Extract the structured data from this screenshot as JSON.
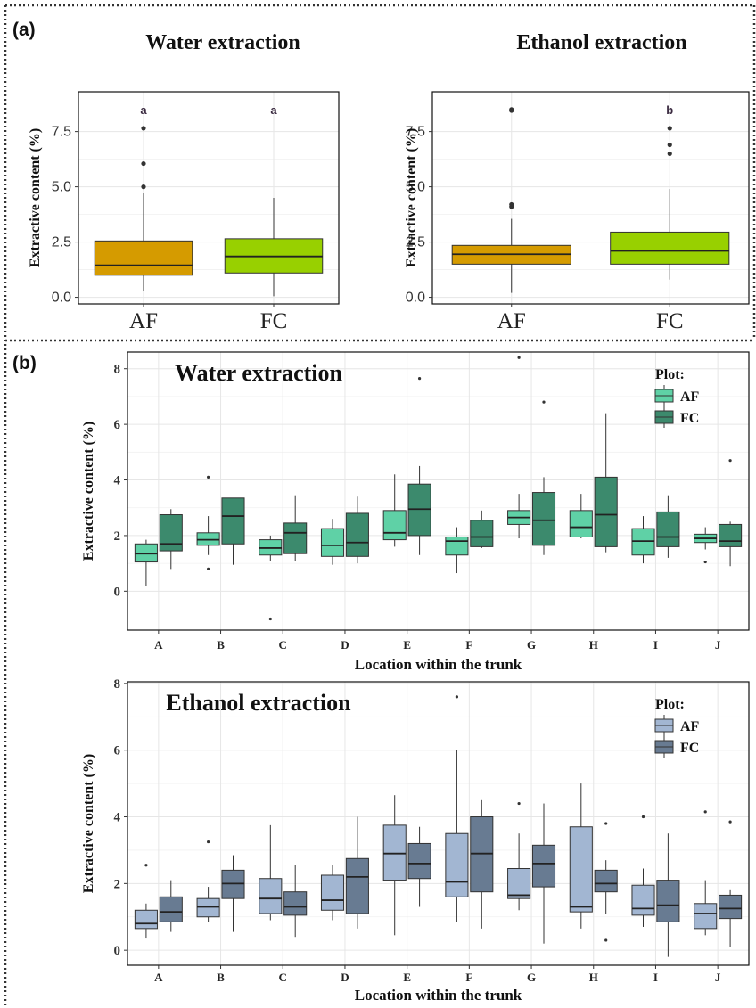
{
  "panels": {
    "a_label": "(a)",
    "b_label": "(b)"
  },
  "colors": {
    "af_orange": "#d59b00",
    "fc_lime": "#98d000",
    "af_teal": "#5fd1a6",
    "fc_teal": "#3c8a6d",
    "af_blue": "#a2b6d2",
    "fc_slate": "#687b92",
    "panel_border": "#333333",
    "grid": "#e6e6e6",
    "frame": "#111111"
  },
  "chart_data": [
    {
      "id": "a-water",
      "type": "box",
      "title": "Water extraction",
      "xlabel": "",
      "ylabel": "Extractive content (%)",
      "ylim": [
        -0.3,
        9.3
      ],
      "yticks": [
        0.0,
        2.5,
        5.0,
        7.5
      ],
      "ytick_labels": [
        "0.0",
        "2.5",
        "5.0",
        "7.5"
      ],
      "categories": [
        "AF",
        "FC"
      ],
      "colors": [
        "#d59b00",
        "#98d000"
      ],
      "boxes": [
        {
          "q1": 1.0,
          "median": 1.45,
          "q3": 2.55,
          "whisker_low": 0.3,
          "whisker_high": 4.7,
          "outliers": [
            5.0,
            6.05,
            7.65
          ]
        },
        {
          "q1": 1.1,
          "median": 1.85,
          "q3": 2.65,
          "whisker_low": 0.05,
          "whisker_high": 4.5,
          "outliers": []
        }
      ],
      "letters": [
        {
          "text": "a",
          "y": 8.45
        },
        {
          "text": "a",
          "y": 8.45
        }
      ]
    },
    {
      "id": "a-ethanol",
      "type": "box",
      "title": "Ethanol extraction",
      "xlabel": "",
      "ylabel": "Extractive content (%)",
      "ylim": [
        -0.3,
        9.3
      ],
      "yticks": [
        0.0,
        2.5,
        5.0,
        7.5
      ],
      "ytick_labels": [
        "0.0",
        "2.5",
        "5.0",
        "7.5"
      ],
      "categories": [
        "AF",
        "FC"
      ],
      "colors": [
        "#d59b00",
        "#98d000"
      ],
      "boxes": [
        {
          "q1": 1.5,
          "median": 1.95,
          "q3": 2.35,
          "whisker_low": 0.2,
          "whisker_high": 3.55,
          "outliers": [
            4.1,
            4.2,
            8.45,
            8.5
          ]
        },
        {
          "q1": 1.5,
          "median": 2.1,
          "q3": 2.95,
          "whisker_low": 0.8,
          "whisker_high": 4.9,
          "outliers": [
            6.5,
            6.9,
            7.65
          ]
        }
      ],
      "letters": [
        {
          "text": "",
          "y": 8.45
        },
        {
          "text": "b",
          "y": 8.45
        }
      ]
    },
    {
      "id": "b-water",
      "type": "box",
      "title": "Water extraction",
      "xlabel": "Location within the trunk",
      "ylabel": "Extractive content (%)",
      "ylim": [
        -1.4,
        8.6
      ],
      "yticks": [
        0,
        2,
        4,
        6,
        8
      ],
      "ytick_labels": [
        "0",
        "2",
        "4",
        "6",
        "8"
      ],
      "categories": [
        "A",
        "B",
        "C",
        "D",
        "E",
        "F",
        "G",
        "H",
        "I",
        "J"
      ],
      "legend": {
        "title": "Plot:",
        "entries": [
          "AF",
          "FC"
        ],
        "position": "top-right"
      },
      "colors": [
        "#5fd1a6",
        "#3c8a6d"
      ],
      "series": [
        {
          "name": "AF",
          "boxes": [
            {
              "q1": 1.05,
              "median": 1.35,
              "q3": 1.7,
              "whisker_low": 0.2,
              "whisker_high": 1.85,
              "outliers": []
            },
            {
              "q1": 1.65,
              "median": 1.85,
              "q3": 2.1,
              "whisker_low": 1.3,
              "whisker_high": 2.7,
              "outliers": [
                0.8,
                4.1
              ]
            },
            {
              "q1": 1.3,
              "median": 1.55,
              "q3": 1.85,
              "whisker_low": 1.1,
              "whisker_high": 2.0,
              "outliers": [
                -1.0
              ]
            },
            {
              "q1": 1.25,
              "median": 1.65,
              "q3": 2.25,
              "whisker_low": 0.95,
              "whisker_high": 2.6,
              "outliers": []
            },
            {
              "q1": 1.85,
              "median": 2.1,
              "q3": 2.9,
              "whisker_low": 1.6,
              "whisker_high": 4.2,
              "outliers": []
            },
            {
              "q1": 1.3,
              "median": 1.8,
              "q3": 1.95,
              "whisker_low": 0.65,
              "whisker_high": 2.3,
              "outliers": []
            },
            {
              "q1": 2.4,
              "median": 2.65,
              "q3": 2.9,
              "whisker_low": 1.9,
              "whisker_high": 3.5,
              "outliers": [
                8.4
              ]
            },
            {
              "q1": 1.95,
              "median": 2.3,
              "q3": 2.9,
              "whisker_low": 1.9,
              "whisker_high": 3.5,
              "outliers": []
            },
            {
              "q1": 1.3,
              "median": 1.8,
              "q3": 2.25,
              "whisker_low": 1.0,
              "whisker_high": 2.7,
              "outliers": []
            },
            {
              "q1": 1.75,
              "median": 1.9,
              "q3": 2.05,
              "whisker_low": 1.5,
              "whisker_high": 2.3,
              "outliers": [
                1.05
              ]
            }
          ]
        },
        {
          "name": "FC",
          "boxes": [
            {
              "q1": 1.45,
              "median": 1.7,
              "q3": 2.75,
              "whisker_low": 0.8,
              "whisker_high": 2.95,
              "outliers": []
            },
            {
              "q1": 1.7,
              "median": 2.7,
              "q3": 3.35,
              "whisker_low": 0.95,
              "whisker_high": 3.35,
              "outliers": []
            },
            {
              "q1": 1.35,
              "median": 2.1,
              "q3": 2.45,
              "whisker_low": 1.1,
              "whisker_high": 3.45,
              "outliers": []
            },
            {
              "q1": 1.25,
              "median": 1.75,
              "q3": 2.8,
              "whisker_low": 1.0,
              "whisker_high": 3.4,
              "outliers": []
            },
            {
              "q1": 2.0,
              "median": 2.95,
              "q3": 3.85,
              "whisker_low": 1.3,
              "whisker_high": 4.5,
              "outliers": [
                7.65
              ]
            },
            {
              "q1": 1.6,
              "median": 1.95,
              "q3": 2.55,
              "whisker_low": 1.55,
              "whisker_high": 2.9,
              "outliers": []
            },
            {
              "q1": 1.65,
              "median": 2.55,
              "q3": 3.55,
              "whisker_low": 1.3,
              "whisker_high": 4.1,
              "outliers": [
                6.8
              ]
            },
            {
              "q1": 1.6,
              "median": 2.75,
              "q3": 4.1,
              "whisker_low": 1.4,
              "whisker_high": 6.4,
              "outliers": []
            },
            {
              "q1": 1.6,
              "median": 1.95,
              "q3": 2.85,
              "whisker_low": 1.2,
              "whisker_high": 3.45,
              "outliers": []
            },
            {
              "q1": 1.6,
              "median": 1.8,
              "q3": 2.4,
              "whisker_low": 0.9,
              "whisker_high": 2.5,
              "outliers": [
                4.7
              ]
            }
          ]
        }
      ]
    },
    {
      "id": "b-ethanol",
      "type": "box",
      "title": "Ethanol extraction",
      "xlabel": "Location within the trunk",
      "ylabel": "Extractive content (%)",
      "ylim": [
        -0.45,
        8.05
      ],
      "yticks": [
        0,
        2,
        4,
        6,
        8
      ],
      "ytick_labels": [
        "0",
        "2",
        "4",
        "6",
        "8"
      ],
      "categories": [
        "A",
        "B",
        "C",
        "D",
        "E",
        "F",
        "G",
        "H",
        "I",
        "J"
      ],
      "legend": {
        "title": "Plot:",
        "entries": [
          "AF",
          "FC"
        ],
        "position": "top-right"
      },
      "colors": [
        "#a2b6d2",
        "#687b92"
      ],
      "series": [
        {
          "name": "AF",
          "boxes": [
            {
              "q1": 0.65,
              "median": 0.8,
              "q3": 1.2,
              "whisker_low": 0.35,
              "whisker_high": 1.4,
              "outliers": [
                2.55
              ]
            },
            {
              "q1": 1.0,
              "median": 1.3,
              "q3": 1.55,
              "whisker_low": 0.85,
              "whisker_high": 1.9,
              "outliers": [
                3.25
              ]
            },
            {
              "q1": 1.1,
              "median": 1.55,
              "q3": 2.15,
              "whisker_low": 0.9,
              "whisker_high": 3.75,
              "outliers": []
            },
            {
              "q1": 1.2,
              "median": 1.5,
              "q3": 2.25,
              "whisker_low": 0.9,
              "whisker_high": 2.55,
              "outliers": []
            },
            {
              "q1": 2.1,
              "median": 2.9,
              "q3": 3.75,
              "whisker_low": 0.45,
              "whisker_high": 4.65,
              "outliers": []
            },
            {
              "q1": 1.6,
              "median": 2.05,
              "q3": 3.5,
              "whisker_low": 0.85,
              "whisker_high": 6.0,
              "outliers": [
                7.6
              ]
            },
            {
              "q1": 1.55,
              "median": 1.65,
              "q3": 2.45,
              "whisker_low": 1.2,
              "whisker_high": 3.5,
              "outliers": [
                4.4
              ]
            },
            {
              "q1": 1.15,
              "median": 1.3,
              "q3": 3.7,
              "whisker_low": 0.65,
              "whisker_high": 5.0,
              "outliers": []
            },
            {
              "q1": 1.05,
              "median": 1.25,
              "q3": 1.95,
              "whisker_low": 0.7,
              "whisker_high": 2.45,
              "outliers": [
                4.0
              ]
            },
            {
              "q1": 0.65,
              "median": 1.1,
              "q3": 1.4,
              "whisker_low": 0.45,
              "whisker_high": 2.1,
              "outliers": [
                4.15
              ]
            }
          ]
        },
        {
          "name": "FC",
          "boxes": [
            {
              "q1": 0.85,
              "median": 1.15,
              "q3": 1.6,
              "whisker_low": 0.55,
              "whisker_high": 2.1,
              "outliers": []
            },
            {
              "q1": 1.55,
              "median": 2.0,
              "q3": 2.4,
              "whisker_low": 0.55,
              "whisker_high": 2.85,
              "outliers": []
            },
            {
              "q1": 1.05,
              "median": 1.3,
              "q3": 1.75,
              "whisker_low": 0.4,
              "whisker_high": 2.55,
              "outliers": []
            },
            {
              "q1": 1.1,
              "median": 2.2,
              "q3": 2.75,
              "whisker_low": 0.65,
              "whisker_high": 4.0,
              "outliers": []
            },
            {
              "q1": 2.15,
              "median": 2.6,
              "q3": 3.2,
              "whisker_low": 1.3,
              "whisker_high": 3.7,
              "outliers": []
            },
            {
              "q1": 1.75,
              "median": 2.9,
              "q3": 4.0,
              "whisker_low": 0.65,
              "whisker_high": 4.5,
              "outliers": []
            },
            {
              "q1": 1.9,
              "median": 2.6,
              "q3": 3.15,
              "whisker_low": 0.2,
              "whisker_high": 4.4,
              "outliers": []
            },
            {
              "q1": 1.75,
              "median": 2.0,
              "q3": 2.4,
              "whisker_low": 1.1,
              "whisker_high": 2.7,
              "outliers": [
                0.3,
                3.8
              ]
            },
            {
              "q1": 0.85,
              "median": 1.35,
              "q3": 2.1,
              "whisker_low": -0.2,
              "whisker_high": 3.5,
              "outliers": []
            },
            {
              "q1": 0.95,
              "median": 1.25,
              "q3": 1.65,
              "whisker_low": 0.1,
              "whisker_high": 1.8,
              "outliers": [
                3.85
              ]
            }
          ]
        }
      ]
    }
  ]
}
